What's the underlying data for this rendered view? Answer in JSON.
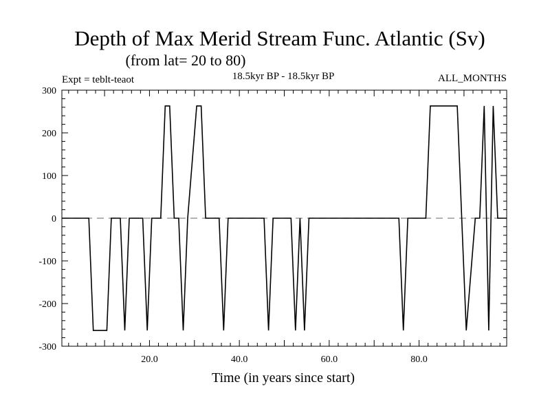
{
  "chart_data": {
    "type": "line",
    "title": "Depth of Max Merid Stream Func. Atlantic (Sv)",
    "subtitle": "(from lat= 20 to 80)",
    "annotation_left": "Expt = teblt-teaot",
    "annotation_center": "18.5kyr BP - 18.5kyr BP",
    "annotation_right": "ALL_MONTHS",
    "xlabel": "Time (in years since start)",
    "ylabel": "",
    "xlim": [
      0.5,
      99.5
    ],
    "ylim": [
      -300,
      300
    ],
    "x_tick_labels": [
      "20.0",
      "40.0",
      "60.0",
      "80.0"
    ],
    "y_tick_labels": [
      "-300",
      "-200",
      "-100",
      "0",
      "100",
      "200",
      "300"
    ],
    "x_major_ticks": [
      20,
      40,
      60,
      80
    ],
    "y_major_ticks": [
      -300,
      -200,
      -100,
      0,
      100,
      200,
      300
    ],
    "grid": false,
    "series": [
      {
        "name": "",
        "color": "#000000",
        "style": "solid",
        "x": [
          0.5,
          6.5,
          7.5,
          10.5,
          11.5,
          13.5,
          14.5,
          15.5,
          18.5,
          19.5,
          20.5,
          22.5,
          23.5,
          24.5,
          25.5,
          26.5,
          27.5,
          28.5,
          30.5,
          31.5,
          32.5,
          35.5,
          36.5,
          37.5,
          45.5,
          46.5,
          47.5,
          51.5,
          52.5,
          53.5,
          54.5,
          55.5,
          75.5,
          76.5,
          77.5,
          81.5,
          82.5,
          88.5,
          89.5,
          90.5,
          92.5,
          93.5,
          94.5,
          95.5,
          96.5,
          97.5,
          99.5
        ],
        "y": [
          0,
          0,
          -263,
          -263,
          0,
          0,
          -263,
          0,
          0,
          -263,
          0,
          0,
          263,
          263,
          0,
          0,
          -263,
          0,
          263,
          263,
          0,
          0,
          -263,
          0,
          0,
          -263,
          0,
          0,
          -263,
          0,
          -263,
          0,
          0,
          -263,
          0,
          0,
          263,
          263,
          0,
          -263,
          0,
          0,
          263,
          -263,
          263,
          0,
          0
        ]
      },
      {
        "name": "",
        "color": "#888888",
        "style": "dashed",
        "x": [
          0.5,
          99.5
        ],
        "y": [
          0,
          0
        ]
      }
    ]
  }
}
